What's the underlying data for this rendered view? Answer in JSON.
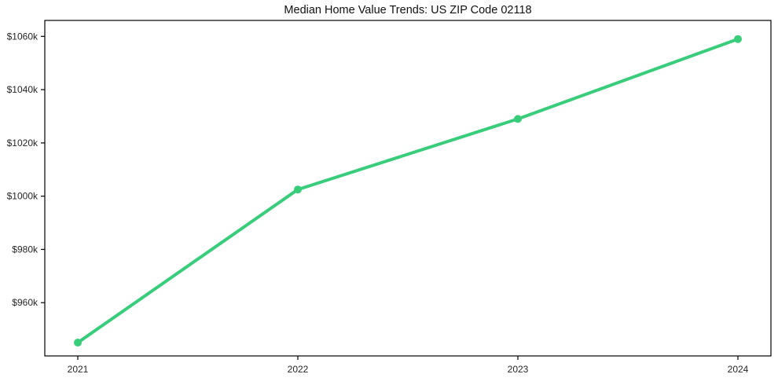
{
  "chart": {
    "title": "Median Home Value Trends: US ZIP Code 02118"
  },
  "chart_data": {
    "type": "line",
    "title": "Median Home Value Trends: US ZIP Code 02118",
    "categories": [
      "2021",
      "2022",
      "2023",
      "2024"
    ],
    "values": [
      945,
      1002.5,
      1029,
      1059
    ],
    "value_unit": "thousand USD",
    "xlabel": "",
    "ylabel": "",
    "ylim": [
      940,
      1066
    ],
    "yticks": [
      960,
      980,
      1000,
      1020,
      1040,
      1060
    ],
    "ytick_labels": [
      "$960k",
      "$980k",
      "$1000k",
      "$1020k",
      "$1040k",
      "$1060k"
    ],
    "grid": false,
    "legend": false,
    "line_color": "#38cd7b",
    "marker": "circle",
    "marker_radius": 5,
    "line_width": 4,
    "axis_color": "#000000",
    "tick_label_color": "#262626",
    "background_color": "#ffffff"
  }
}
